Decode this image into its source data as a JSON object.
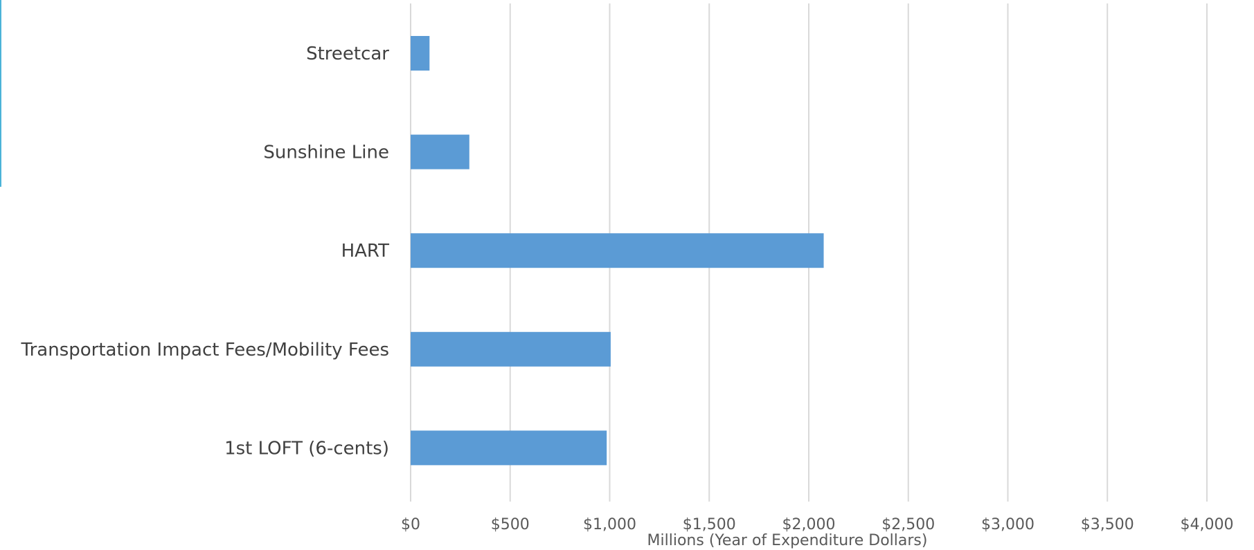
{
  "chart_data": {
    "type": "bar",
    "orientation": "horizontal",
    "title": "",
    "xlabel": "Millions (Year of Expenditure Dollars)",
    "ylabel": "",
    "categories": [
      "Streetcar",
      "Sunshine Line",
      "HART",
      "Transportation Impact Fees/Mobility Fees",
      "1st LOFT (6-cents)"
    ],
    "values": [
      95,
      295,
      2075,
      1005,
      985
    ],
    "xlim": [
      0,
      4000
    ],
    "x_ticks": [
      0,
      500,
      1000,
      1500,
      2000,
      2500,
      3000,
      3500,
      4000
    ],
    "x_tick_labels": [
      "$0",
      "$500",
      "$1,000",
      "$1,500",
      "$2,000",
      "$2,500",
      "$3,000",
      "$3,500",
      "$4,000"
    ],
    "grid": "vertical",
    "legend": "none"
  },
  "colors": {
    "bar": "#5b9bd5",
    "grid": "#d9d9d9",
    "category_label": "#404040",
    "tick_label": "#595959",
    "left_edge": "#4bb3d8"
  }
}
